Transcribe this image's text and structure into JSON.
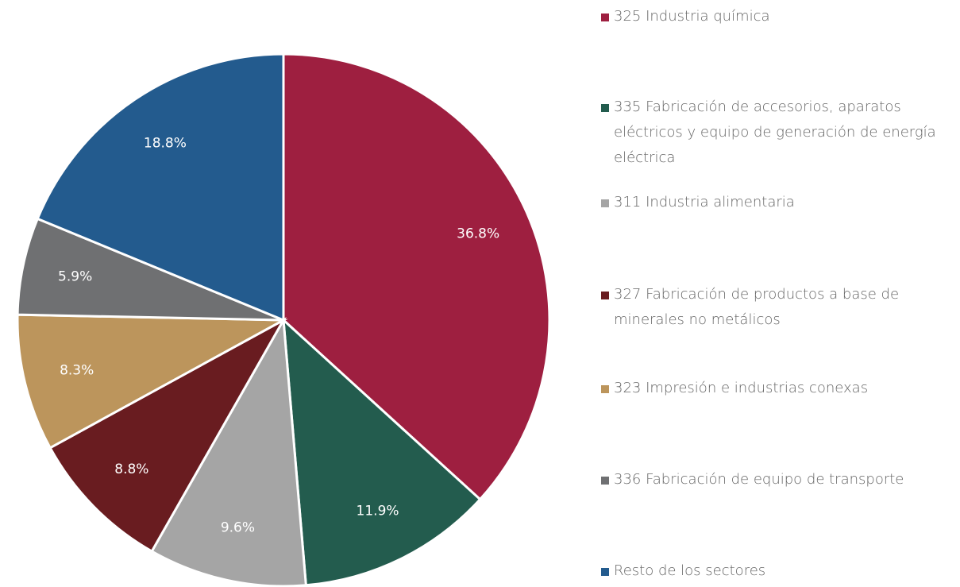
{
  "chart_data": {
    "type": "pie",
    "categories": [
      "325 Industria química",
      "335 Fabricación de accesorios, aparatos eléctricos y equipo de generación de energía eléctrica",
      "311 Industria alimentaria",
      "327 Fabricación de productos a base de minerales no metálicos",
      "323 Impresión e industrias conexas",
      "336 Fabricación de equipo de transporte",
      "Resto de los sectores"
    ],
    "values": [
      36.8,
      11.9,
      9.6,
      8.8,
      8.3,
      5.9,
      18.8
    ],
    "value_labels": [
      "36.8%",
      "11.9%",
      "9.6%",
      "8.8%",
      "8.3%",
      "5.9%",
      "18.8%"
    ],
    "colors": [
      "#9e1f40",
      "#235c4e",
      "#a5a5a5",
      "#691c20",
      "#bc955c",
      "#6f7072",
      "#235b8e"
    ],
    "legend": "right"
  }
}
